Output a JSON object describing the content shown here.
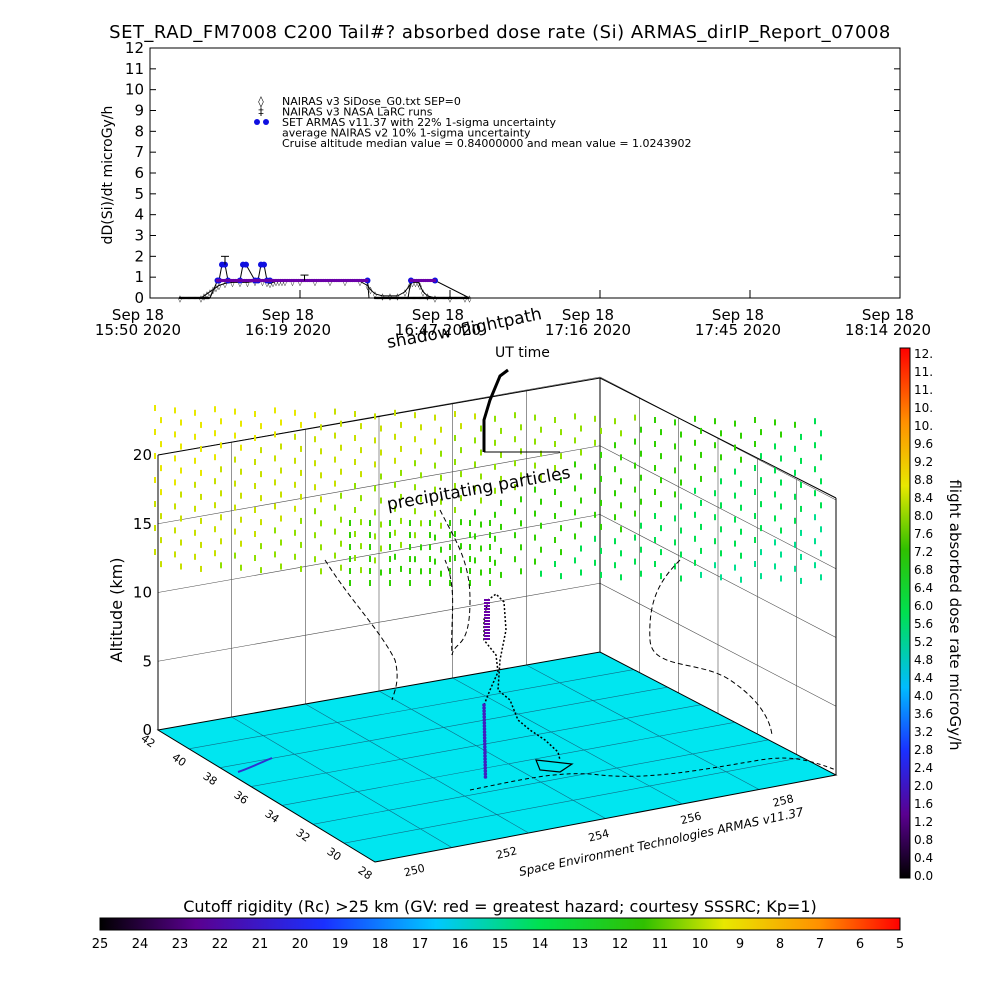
{
  "title": "SET_RAD_FM7008  C200 Tail#? absorbed dose rate (Si) ARMAS_dirIP_Report_07008",
  "chart_data": [
    {
      "type": "line",
      "ylabel": "dD(Si)/dt microGy/h",
      "ylim": [
        0,
        12
      ],
      "yticks": [
        "0",
        "1",
        "2",
        "3",
        "4",
        "5",
        "6",
        "7",
        "8",
        "9",
        "10",
        "11",
        "12"
      ],
      "xticks": [
        {
          "line1": "Sep 18",
          "line2": "15:50 2020"
        },
        {
          "line1": "Sep 18",
          "line2": "16:19 2020"
        },
        {
          "line1": "Sep 18",
          "line2": "16:47 2020"
        },
        {
          "line1": "Sep 18",
          "line2": "17:16 2020"
        },
        {
          "line1": "Sep 18",
          "line2": "17:45 2020"
        },
        {
          "line1": "Sep 18",
          "line2": "18:14 2020"
        }
      ],
      "legend": [
        {
          "symbol": "◊",
          "text": "NAIRAS v3 SiDose_G0.txt SEP=0"
        },
        {
          "symbol": "‡",
          "text": "NAIRAS v3 NASA LaRC runs"
        },
        {
          "symbol": "●",
          "text": "SET ARMAS v11.37 with 22% 1-sigma uncertainty"
        },
        {
          "symbol": "",
          "text": "average NAIRAS v2 10% 1-sigma uncertainty"
        },
        {
          "symbol": "",
          "text": "Cruise altitude median value = 0.84000000 and mean value = 1.0243902"
        }
      ],
      "series": [
        {
          "name": "NAIRAS v3 SiDose_G0.txt SEP=0",
          "x": [
            0.2,
            0.34,
            0.36,
            0.38,
            0.4,
            0.42,
            0.44,
            0.46,
            0.5,
            0.55,
            0.6,
            0.65,
            0.7,
            0.75,
            0.78,
            0.8,
            0.82,
            0.84,
            0.86,
            0.88,
            0.9,
            0.95,
            1.0,
            1.1,
            1.2,
            1.3,
            1.4,
            1.45,
            1.47,
            1.5,
            1.55,
            1.6,
            1.65,
            1.7,
            1.73,
            1.75,
            1.77,
            1.79,
            1.8,
            1.82,
            1.85,
            1.9,
            2.0,
            2.1,
            2.13
          ],
          "values": [
            0.0,
            0.0,
            0.1,
            0.2,
            0.3,
            0.4,
            0.5,
            0.6,
            0.7,
            0.75,
            0.75,
            0.75,
            0.8,
            0.8,
            0.75,
            0.7,
            0.75,
            0.8,
            0.8,
            0.8,
            0.8,
            0.8,
            0.8,
            0.8,
            0.8,
            0.8,
            0.8,
            0.6,
            0.4,
            0.2,
            0.1,
            0.1,
            0.1,
            0.3,
            0.6,
            0.75,
            0.75,
            0.75,
            0.6,
            0.3,
            0.1,
            0.0,
            0.0,
            0.0,
            0.0
          ]
        },
        {
          "name": "SET ARMAS v11.37 with 22% 1-sigma uncertainty",
          "x": [
            0.2,
            0.4,
            0.45,
            0.46,
            0.48,
            0.5,
            0.52,
            0.6,
            0.62,
            0.64,
            0.7,
            0.72,
            0.74,
            0.76,
            0.78,
            0.8,
            1.45,
            1.46,
            1.72,
            1.74,
            1.9,
            2.13
          ],
          "values": [
            0.0,
            0.0,
            0.84,
            0.84,
            1.6,
            1.6,
            0.84,
            0.84,
            1.6,
            1.6,
            0.84,
            0.84,
            1.6,
            1.6,
            0.84,
            0.84,
            0.84,
            0.0,
            0.0,
            0.84,
            0.84,
            0.0
          ]
        }
      ]
    },
    {
      "type": "scatter",
      "ylabel": "Altitude (km)",
      "zticks": [
        "0",
        "5",
        "10",
        "15",
        "20"
      ],
      "latticks": [
        "42",
        "40",
        "38",
        "36",
        "34",
        "32",
        "30",
        "28"
      ],
      "lonticks": [
        "250",
        "252",
        "254",
        "256",
        "258"
      ],
      "annotations": {
        "shadow": "shadow",
        "flightpath": "flightpath",
        "ut_time": "UT time",
        "particles": "precipitating particles",
        "credit": "Space Environment Technologies ARMAS v11.37"
      }
    }
  ],
  "colorbar_right": {
    "label": "flight absorbed dose rate microGy/h",
    "ticks": [
      "0.0",
      "0.4",
      "0.8",
      "1.2",
      "1.6",
      "2.0",
      "2.4",
      "2.8",
      "3.2",
      "3.6",
      "4.0",
      "4.4",
      "4.8",
      "5.2",
      "5.6",
      "6.0",
      "6.4",
      "6.8",
      "7.2",
      "7.6",
      "8.0",
      "8.4",
      "8.8",
      "9.2",
      "9.6",
      "10.",
      "10.",
      "11.",
      "11.",
      "12."
    ]
  },
  "colorbar_bottom": {
    "label": "Cutoff rigidity (Rc) >25 km (GV: red = greatest hazard; courtesy SSSRC; Kp=1)",
    "ticks": [
      "25",
      "24",
      "23",
      "22",
      "21",
      "20",
      "19",
      "18",
      "17",
      "16",
      "15",
      "14",
      "13",
      "12",
      "11",
      "10",
      "9",
      "8",
      "7",
      "6",
      "5"
    ]
  },
  "colors": {
    "ground": "#00e6f0",
    "armas": "#1010e0",
    "flight": "#6a00a8"
  }
}
